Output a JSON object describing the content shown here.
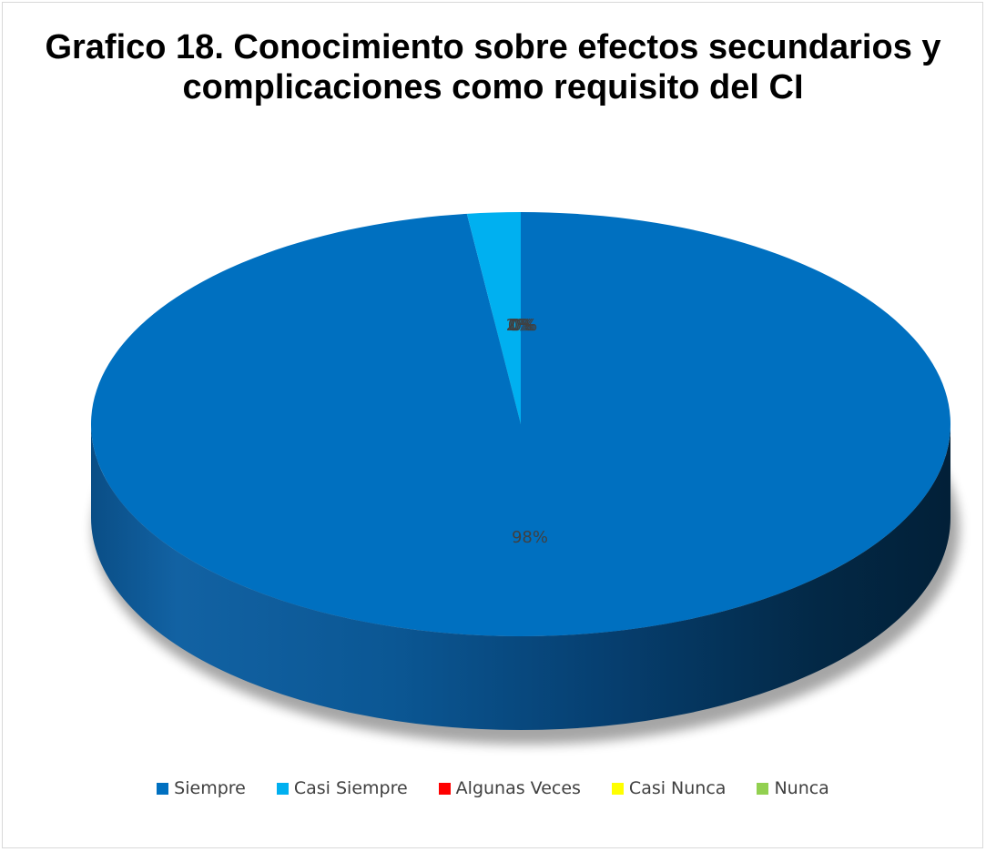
{
  "chart_data": {
    "type": "pie",
    "title": "Grafico 18. Conocimiento sobre efectos secundarios y complicaciones como requisito del CI",
    "categories": [
      "Siempre",
      "Casi Siempre",
      "Algunas Veces",
      "Casi Nunca",
      "Nunca"
    ],
    "values": [
      98,
      2,
      0,
      0,
      0
    ],
    "data_labels": [
      "98%",
      "2%",
      "0%",
      "0%",
      "0%"
    ],
    "colors": [
      "#0070C0",
      "#00B0F0",
      "#FF0000",
      "#FFFF00",
      "#92D050"
    ],
    "style": "3d-pie",
    "legend_position": "bottom"
  }
}
